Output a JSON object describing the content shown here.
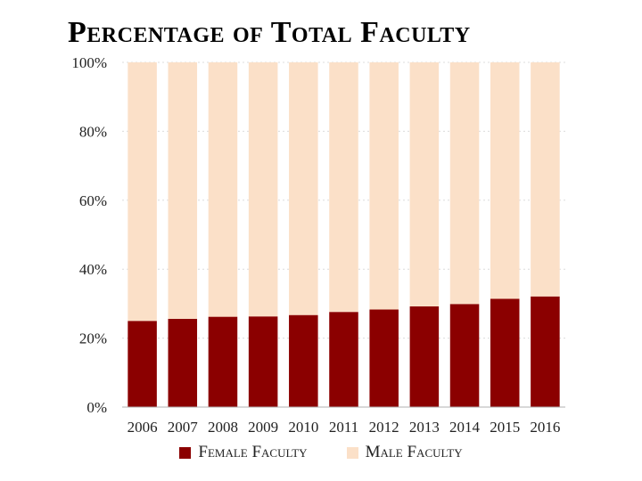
{
  "chart_data": {
    "type": "bar",
    "stacked": true,
    "title": "Percentage of Total Faculty",
    "xlabel": "",
    "ylabel": "",
    "ylim": [
      0,
      100
    ],
    "categories": [
      "2006",
      "2007",
      "2008",
      "2009",
      "2010",
      "2011",
      "2012",
      "2013",
      "2014",
      "2015",
      "2016"
    ],
    "y_ticks": [
      0,
      20,
      40,
      60,
      80,
      100
    ],
    "y_tick_labels": [
      "0%",
      "20%",
      "40%",
      "60%",
      "80%",
      "100%"
    ],
    "grid": true,
    "legend_position": "bottom",
    "series": [
      {
        "name": "Female Faculty",
        "color": "#8b0000",
        "values": [
          25.0,
          25.6,
          26.2,
          26.3,
          26.7,
          27.6,
          28.3,
          29.2,
          29.9,
          31.4,
          32.1
        ]
      },
      {
        "name": "Male Faculty",
        "color": "#fbe0c8",
        "values": [
          75.0,
          74.4,
          73.8,
          73.7,
          73.3,
          72.4,
          71.7,
          70.8,
          70.1,
          68.6,
          67.9
        ]
      }
    ]
  }
}
